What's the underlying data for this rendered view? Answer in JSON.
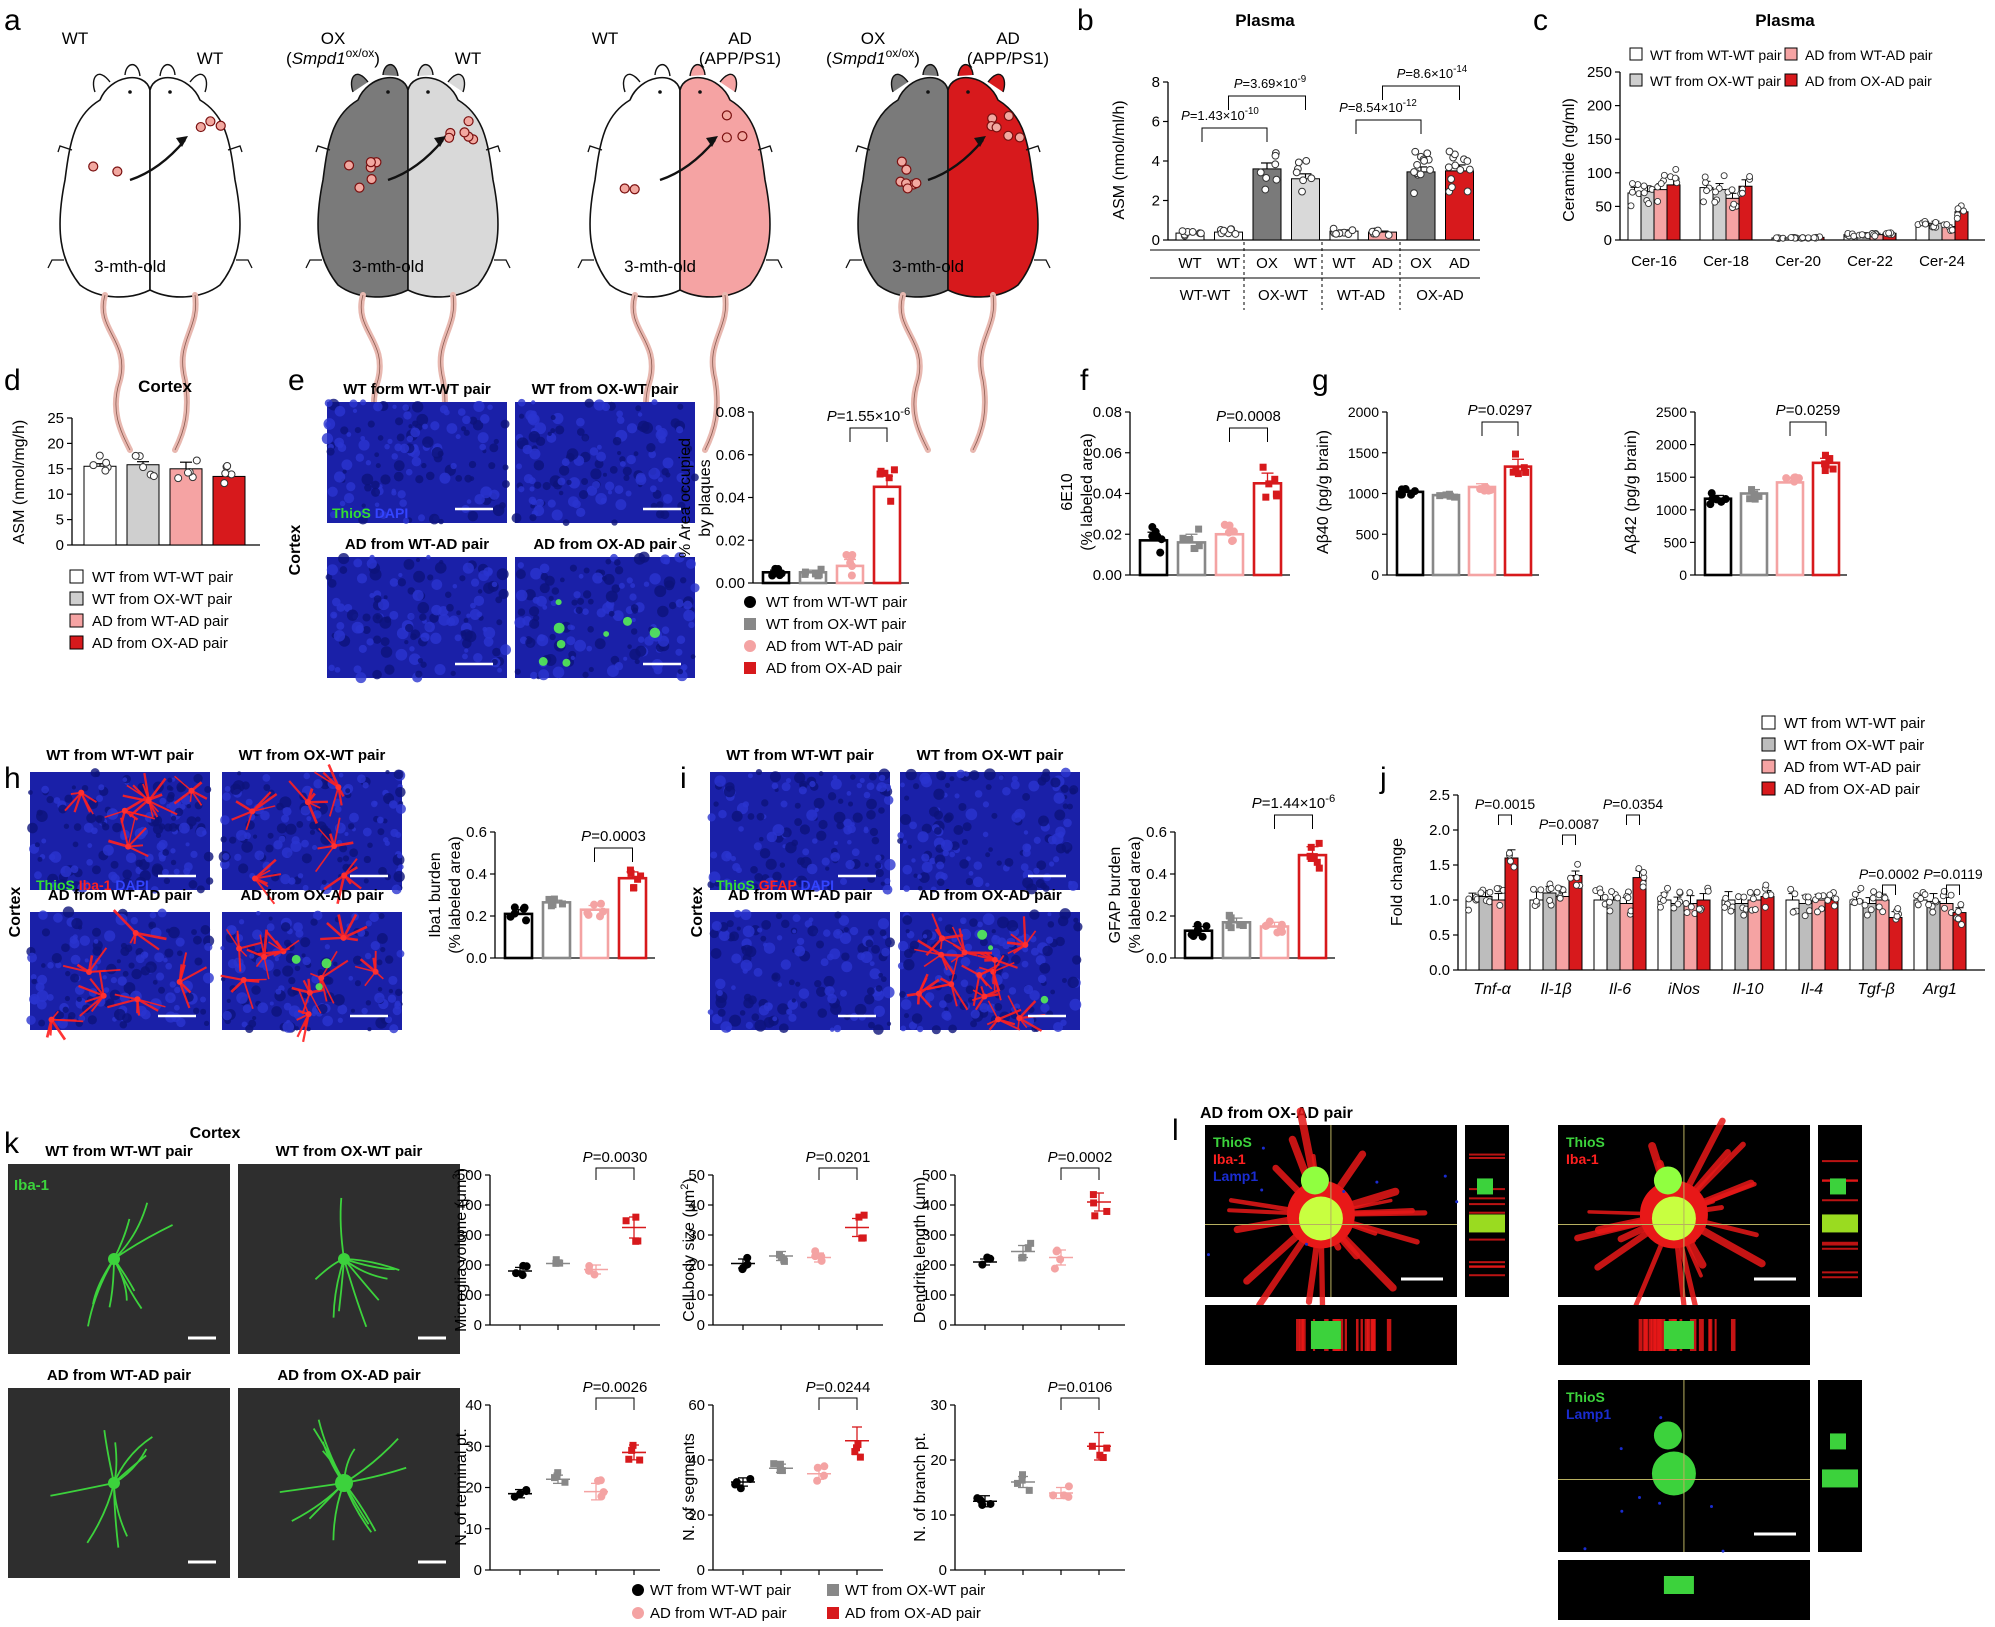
{
  "colors": {
    "wtwt": "#000000",
    "oxwt": "#888888",
    "adwt": "#f4a3a3",
    "adox": "#d7191c",
    "ox_mouse": "#7a7a7a",
    "wt_light_mouse": "#d9d9d9",
    "ad_mouse": "#f5a3a3",
    "adox_mouse": "#d7191c",
    "micro_green": "#3cd23c",
    "micro_red": "#e61e1e",
    "micro_blue": "#1a2cd0"
  },
  "panel_letters": [
    "a",
    "b",
    "c",
    "d",
    "e",
    "f",
    "g",
    "h",
    "i",
    "j",
    "k",
    "l"
  ],
  "panel_a": {
    "pairs": [
      {
        "left": "WT",
        "left2": "",
        "right": "WT",
        "right2": "",
        "age": "3-mth-old"
      },
      {
        "left": "OX",
        "left2": "(Smpd1ox/ox)",
        "right": "WT",
        "right2": "",
        "age": "3-mth-old"
      },
      {
        "left": "WT",
        "left2": "",
        "right": "AD",
        "right2": "(APP/PS1)",
        "age": "3-mth-old"
      },
      {
        "left": "OX",
        "left2": "(Smpd1ox/ox)",
        "right": "AD",
        "right2": "(APP/PS1)",
        "age": "3-mth-old"
      }
    ]
  },
  "legends": {
    "groups": [
      "WT from WT-WT pair",
      "WT from OX-WT pair",
      "AD from WT-AD pair",
      "AD from OX-AD pair"
    ],
    "d_groups": [
      "WT from WT-WT pair",
      "WT from OX-WT pair",
      "AD from WT-AD pair",
      "AD from OX-AD pair"
    ],
    "e_groups": [
      "WT from WT-WT pair",
      "WT from OX-WT pair",
      "AD from WT-AD pair",
      "AD from OX-AD pair"
    ]
  },
  "image_labels": {
    "e": [
      "WT form WT-WT pair",
      "WT from OX-WT pair",
      "AD from WT-AD pair",
      "AD from OX-AD pair"
    ],
    "e_stain": [
      "ThioS",
      "DAPI"
    ],
    "h": [
      "WT from WT-WT pair",
      "WT from OX-WT pair",
      "AD from WT-AD pair",
      "AD from OX-AD pair"
    ],
    "h_stain": [
      "ThioS",
      "Iba-1",
      "DAPI"
    ],
    "i": [
      "WT from WT-WT pair",
      "WT from OX-WT pair",
      "AD from WT-AD pair",
      "AD from OX-AD pair"
    ],
    "i_stain": [
      "ThioS",
      "GFAP",
      "DAPI"
    ],
    "k": [
      "WT from WT-WT pair",
      "WT from OX-WT pair",
      "AD from WT-AD pair",
      "AD from OX-AD pair"
    ],
    "k_stain": "Iba-1",
    "k_title": "Cortex",
    "side_label": "Cortex",
    "l_title": "AD from OX-AD pair",
    "l_stain1": [
      "ThioS",
      "Iba-1",
      "Lamp1"
    ],
    "l_stain2": [
      "ThioS",
      "Iba-1"
    ],
    "l_stain3": [
      "ThioS",
      "Lamp1"
    ]
  },
  "chart_data": [
    {
      "id": "b",
      "type": "bar",
      "title": "Plasma",
      "ylabel": "ASM (nmol/ml/h)",
      "ylim": [
        0,
        8
      ],
      "yticks": [
        0,
        2,
        4,
        6,
        8
      ],
      "categories": [
        "WT",
        "WT",
        "OX",
        "WT",
        "WT",
        "AD",
        "OX",
        "AD"
      ],
      "groups": [
        "WT-WT",
        "OX-WT",
        "WT-AD",
        "OX-AD"
      ],
      "values": [
        0.35,
        0.4,
        3.6,
        3.1,
        0.45,
        0.4,
        3.45,
        3.5
      ],
      "errors": [
        0.05,
        0.05,
        0.3,
        0.25,
        0.06,
        0.05,
        0.25,
        0.3
      ],
      "pvalues": [
        {
          "label": "P=1.43×10-10",
          "from": 1,
          "to": 2
        },
        {
          "label": "P=3.69×10-9",
          "from": 1,
          "to": 3
        },
        {
          "label": "P=8.54×10-12",
          "from": 5,
          "to": 6
        },
        {
          "label": "P=8.6×10-14",
          "from": 5,
          "to": 7
        }
      ]
    },
    {
      "id": "c",
      "type": "bar",
      "title": "Plasma",
      "ylabel": "Ceramide (ng/ml)",
      "ylim": [
        0,
        250
      ],
      "yticks": [
        0,
        50,
        100,
        150,
        200,
        250
      ],
      "categories": [
        "Cer-16",
        "Cer-18",
        "Cer-20",
        "Cer-22",
        "Cer-24"
      ],
      "series": [
        {
          "name": "WT from WT-WT pair",
          "values": [
            70,
            78,
            3,
            8,
            22
          ]
        },
        {
          "name": "WT from OX-WT pair",
          "values": [
            72,
            75,
            3,
            9,
            25
          ]
        },
        {
          "name": "AD from WT-AD pair",
          "values": [
            75,
            62,
            3,
            8,
            20
          ]
        },
        {
          "name": "AD from OX-AD pair",
          "values": [
            82,
            80,
            4,
            10,
            42
          ]
        }
      ]
    },
    {
      "id": "d",
      "type": "bar",
      "title": "Cortex",
      "ylabel": "ASM (nmol/mg/h)",
      "ylim": [
        0,
        25
      ],
      "yticks": [
        0,
        5,
        10,
        15,
        20,
        25
      ],
      "categories": [
        "WT from WT-WT pair",
        "WT from OX-WT pair",
        "AD from WT-AD pair",
        "AD from OX-AD pair"
      ],
      "values": [
        15.5,
        15.8,
        15.0,
        13.5
      ],
      "errors": [
        0.5,
        0.6,
        1.3,
        0.7
      ]
    },
    {
      "id": "e",
      "type": "bar",
      "ylabel": "% Area occupied by plaques",
      "ylabel1": "% Area occupied",
      "ylabel2": "by plaques",
      "ylim": [
        0,
        0.08
      ],
      "yticks": [
        "0.00",
        "0.02",
        "0.04",
        "0.06",
        "0.08"
      ],
      "values": [
        0.005,
        0.005,
        0.008,
        0.045
      ],
      "errors": [
        0.001,
        0.001,
        0.003,
        0.005
      ],
      "pvalue": "P=1.55×10-6"
    },
    {
      "id": "f",
      "type": "bar",
      "ylabel1": "6E10",
      "ylabel2": "(% labeled area)",
      "ylim": [
        0,
        0.08
      ],
      "yticks": [
        "0.00",
        "0.02",
        "0.04",
        "0.06",
        "0.08"
      ],
      "values": [
        0.017,
        0.016,
        0.02,
        0.045
      ],
      "errors": [
        0.004,
        0.004,
        0.003,
        0.005
      ],
      "pvalue": "P=0.0008"
    },
    {
      "id": "g1",
      "type": "bar",
      "ylabel": "Aβ40 (pg/g brain)",
      "ylim": [
        0,
        2000
      ],
      "yticks": [
        0,
        500,
        1000,
        1500,
        2000
      ],
      "values": [
        1020,
        980,
        1080,
        1330
      ],
      "errors": [
        20,
        15,
        40,
        90
      ],
      "pvalue": "P=0.0297"
    },
    {
      "id": "g2",
      "type": "bar",
      "ylabel": "Aβ42 (pg/g brain)",
      "ylim": [
        0,
        2500
      ],
      "yticks": [
        0,
        500,
        1000,
        1500,
        2000,
        2500
      ],
      "values": [
        1170,
        1250,
        1420,
        1720
      ],
      "errors": [
        50,
        60,
        80,
        70
      ],
      "pvalue": "P=0.0259"
    },
    {
      "id": "h",
      "type": "bar",
      "ylabel1": "Iba1 burden",
      "ylabel2": "(% labeled area)",
      "ylim": [
        0,
        0.6
      ],
      "yticks": [
        "0.0",
        "0.2",
        "0.4",
        "0.6"
      ],
      "values": [
        0.21,
        0.265,
        0.23,
        0.38
      ],
      "errors": [
        0.02,
        0.01,
        0.02,
        0.03
      ],
      "pvalue": "P=0.0003"
    },
    {
      "id": "i",
      "type": "bar",
      "ylabel1": "GFAP burden",
      "ylabel2": "(% labeled area)",
      "ylim": [
        0,
        0.6
      ],
      "yticks": [
        "0.0",
        "0.2",
        "0.4",
        "0.6"
      ],
      "values": [
        0.13,
        0.17,
        0.15,
        0.49
      ],
      "errors": [
        0.02,
        0.02,
        0.02,
        0.04
      ],
      "pvalue": "P=1.44×10-6"
    },
    {
      "id": "j",
      "type": "bar",
      "ylabel": "Fold change",
      "ylim": [
        0,
        2.5
      ],
      "yticks": [
        "0.0",
        "0.5",
        "1.0",
        "1.5",
        "2.0",
        "2.5"
      ],
      "categories": [
        "Tnf-α",
        "Il-1β",
        "Il-6",
        "iNos",
        "Il-10",
        "Il-4",
        "Tgf-β",
        "Arg1"
      ],
      "series": [
        {
          "name": "WT from WT-WT pair",
          "values": [
            1.0,
            1.0,
            1.0,
            1.0,
            1.0,
            1.0,
            1.0,
            1.0
          ]
        },
        {
          "name": "WT from OX-WT pair",
          "values": [
            1.05,
            1.1,
            1.0,
            0.95,
            0.95,
            0.95,
            0.95,
            0.98
          ]
        },
        {
          "name": "AD from WT-AD pair",
          "values": [
            1.0,
            1.05,
            0.95,
            0.95,
            1.0,
            1.0,
            1.0,
            0.95
          ]
        },
        {
          "name": "AD from OX-AD pair",
          "values": [
            1.6,
            1.35,
            1.32,
            1.0,
            1.05,
            1.0,
            0.75,
            0.82
          ]
        }
      ],
      "pvalues": [
        "P=0.0015",
        "P=0.0087",
        "P=0.0354",
        "",
        "",
        "",
        "P=0.0002",
        "P=0.0119"
      ]
    },
    {
      "id": "k1",
      "type": "scatter",
      "ylabel": "Microglia volume (μm3)",
      "ylim": [
        0,
        500
      ],
      "yticks": [
        0,
        100,
        200,
        300,
        400,
        500
      ],
      "means": [
        180,
        205,
        185,
        325
      ],
      "errors": [
        12,
        8,
        15,
        35
      ],
      "pvalue": "P=0.0030"
    },
    {
      "id": "k2",
      "type": "scatter",
      "ylabel": "Cell body size (μm2)",
      "ylim": [
        0,
        50
      ],
      "yticks": [
        0,
        10,
        20,
        30,
        40,
        50
      ],
      "means": [
        20.5,
        23,
        22.5,
        32.5
      ],
      "errors": [
        1.5,
        1.5,
        1.5,
        3
      ],
      "pvalue": "P=0.0201"
    },
    {
      "id": "k3",
      "type": "scatter",
      "ylabel": "Dendrite length (μm)",
      "ylim": [
        0,
        500
      ],
      "yticks": [
        0,
        100,
        200,
        300,
        400,
        500
      ],
      "means": [
        210,
        245,
        225,
        410
      ],
      "errors": [
        10,
        20,
        25,
        30
      ],
      "pvalue": "P=0.0002"
    },
    {
      "id": "k4",
      "type": "scatter",
      "ylabel": "N. of terminal pt.",
      "ylim": [
        0,
        40
      ],
      "yticks": [
        0,
        10,
        20,
        30,
        40
      ],
      "means": [
        18.5,
        22,
        19,
        28.5
      ],
      "errors": [
        1,
        1,
        2,
        1.8
      ],
      "pvalue": "P=0.0026"
    },
    {
      "id": "k5",
      "type": "scatter",
      "ylabel": "N. of segments",
      "ylim": [
        0,
        60
      ],
      "yticks": [
        0,
        20,
        40,
        60
      ],
      "means": [
        32,
        37,
        35,
        47
      ],
      "errors": [
        1.5,
        1.5,
        2,
        5
      ],
      "pvalue": "P=0.0244"
    },
    {
      "id": "k6",
      "type": "scatter",
      "ylabel": "N. of branch pt.",
      "ylim": [
        0,
        30
      ],
      "yticks": [
        0,
        10,
        20,
        30
      ],
      "means": [
        12.5,
        16,
        14,
        22.5
      ],
      "errors": [
        1,
        1,
        1,
        2.5
      ],
      "pvalue": "P=0.0106"
    }
  ]
}
